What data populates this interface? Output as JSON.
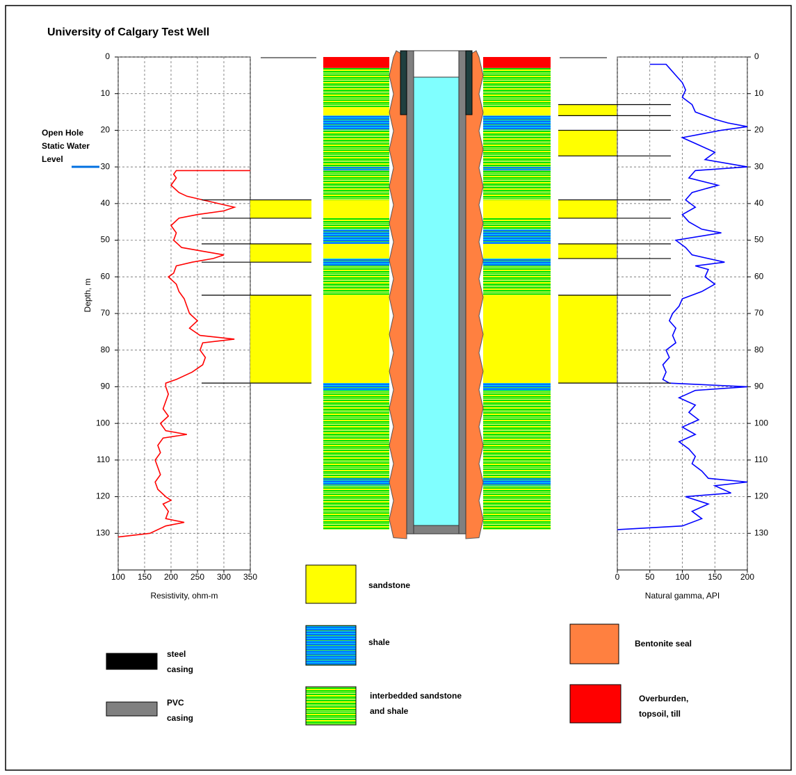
{
  "title": "University of Calgary Test Well",
  "water_level_label": [
    "Open Hole",
    "Static Water",
    "Level"
  ],
  "chart_data": [
    {
      "type": "line",
      "orientation": "vertical",
      "xlabel": "Depth, m",
      "ylabel": "Resistivity, ohm-m",
      "tick_side": "left",
      "color": "#ff0000",
      "grid": true,
      "xlim": [
        0,
        140
      ],
      "xticks": [
        0,
        10,
        20,
        30,
        40,
        50,
        60,
        70,
        80,
        90,
        100,
        110,
        120,
        130
      ],
      "ylim": [
        100,
        350
      ],
      "yticks": [
        100,
        150,
        200,
        250,
        300,
        350
      ],
      "x": [
        31,
        31,
        32,
        33,
        35,
        37,
        38,
        39,
        40,
        41,
        42,
        43,
        44,
        46,
        48,
        50,
        52,
        53,
        54,
        55,
        56,
        57,
        59,
        60,
        62,
        64,
        66,
        68,
        70,
        72,
        74,
        76,
        77,
        78,
        80,
        82,
        84,
        86,
        88,
        89,
        90,
        92,
        94,
        96,
        98,
        100,
        102,
        103,
        104,
        106,
        108,
        110,
        112,
        114,
        116,
        118,
        120,
        121,
        122,
        124,
        126,
        127,
        128,
        130,
        131
      ],
      "values": [
        350,
        210,
        205,
        210,
        200,
        215,
        230,
        260,
        290,
        320,
        300,
        250,
        215,
        200,
        210,
        205,
        220,
        260,
        300,
        280,
        240,
        210,
        205,
        195,
        210,
        215,
        225,
        230,
        235,
        250,
        235,
        255,
        320,
        260,
        255,
        265,
        260,
        240,
        210,
        190,
        190,
        195,
        190,
        185,
        195,
        180,
        190,
        230,
        185,
        175,
        180,
        170,
        175,
        180,
        170,
        175,
        190,
        200,
        185,
        195,
        190,
        225,
        190,
        160,
        100
      ],
      "picks": [
        [
          39,
          44
        ],
        [
          51,
          56
        ],
        [
          65,
          89
        ]
      ]
    },
    {
      "type": "line",
      "orientation": "vertical",
      "ylabel": "Natural gamma, API",
      "tick_side": "right",
      "color": "#0000ff",
      "grid": true,
      "xlim": [
        0,
        140
      ],
      "xticks": [
        0,
        10,
        20,
        30,
        40,
        50,
        60,
        70,
        80,
        90,
        100,
        110,
        120,
        130
      ],
      "ylim": [
        0,
        200
      ],
      "yticks": [
        0,
        50,
        100,
        150,
        200
      ],
      "x": [
        2,
        2,
        3,
        5,
        7,
        9,
        11,
        13,
        15,
        17,
        18,
        19,
        20,
        21,
        22,
        24,
        26,
        28,
        30,
        31,
        33,
        35,
        37,
        39,
        41,
        43,
        45,
        47,
        48,
        50,
        52,
        54,
        56,
        57,
        58,
        60,
        62,
        64,
        66,
        68,
        70,
        72,
        74,
        76,
        78,
        80,
        82,
        84,
        86,
        88,
        89,
        90,
        91,
        93,
        95,
        97,
        99,
        101,
        103,
        105,
        107,
        109,
        111,
        113,
        115,
        116,
        117,
        119,
        120,
        122,
        124,
        126,
        128,
        129
      ],
      "values": [
        50,
        75,
        80,
        90,
        100,
        105,
        100,
        115,
        120,
        150,
        170,
        200,
        160,
        130,
        100,
        125,
        150,
        135,
        200,
        120,
        110,
        155,
        115,
        105,
        120,
        100,
        110,
        130,
        160,
        90,
        105,
        115,
        165,
        120,
        140,
        135,
        150,
        130,
        100,
        95,
        85,
        80,
        90,
        85,
        90,
        75,
        80,
        70,
        75,
        70,
        80,
        200,
        120,
        95,
        120,
        110,
        125,
        100,
        120,
        95,
        110,
        120,
        115,
        130,
        140,
        200,
        150,
        175,
        105,
        140,
        115,
        130,
        100,
        0
      ],
      "picks": [
        [
          13,
          16
        ],
        [
          20,
          27
        ],
        [
          39,
          44
        ],
        [
          51,
          55
        ],
        [
          65,
          89
        ]
      ]
    }
  ],
  "legend": [
    {
      "label": [
        "sandstone"
      ],
      "color": "url(#sand)",
      "intervals": [
        [
          14,
          16
        ],
        [
          39,
          44
        ],
        [
          51,
          55
        ],
        [
          65,
          89
        ]
      ]
    },
    {
      "label": [
        "shale"
      ],
      "color": "url(#shale)",
      "intervals": [
        [
          16,
          20
        ],
        [
          30,
          31
        ],
        [
          47,
          51
        ],
        [
          55,
          57
        ],
        [
          89,
          91
        ],
        [
          115,
          117
        ]
      ]
    },
    {
      "label": [
        "interbedded sandstone",
        "and shale"
      ],
      "color": "url(#inter)",
      "intervals": [
        [
          3,
          14
        ],
        [
          20,
          30
        ],
        [
          31,
          39
        ],
        [
          44,
          47
        ],
        [
          57,
          65
        ],
        [
          91,
          115
        ],
        [
          117,
          129
        ]
      ]
    },
    {
      "label": [
        "Bentonite seal"
      ],
      "color": "#ff8040",
      "intervals": []
    },
    {
      "label": [
        "Overburden,",
        "topsoil, till"
      ],
      "color": "#ff0000",
      "intervals": [
        [
          0,
          3
        ]
      ]
    },
    {
      "label": [
        "steel",
        "casing"
      ],
      "color": "#000000",
      "intervals": []
    },
    {
      "label": [
        "PVC",
        "casing"
      ],
      "color": "#808080",
      "intervals": []
    }
  ]
}
